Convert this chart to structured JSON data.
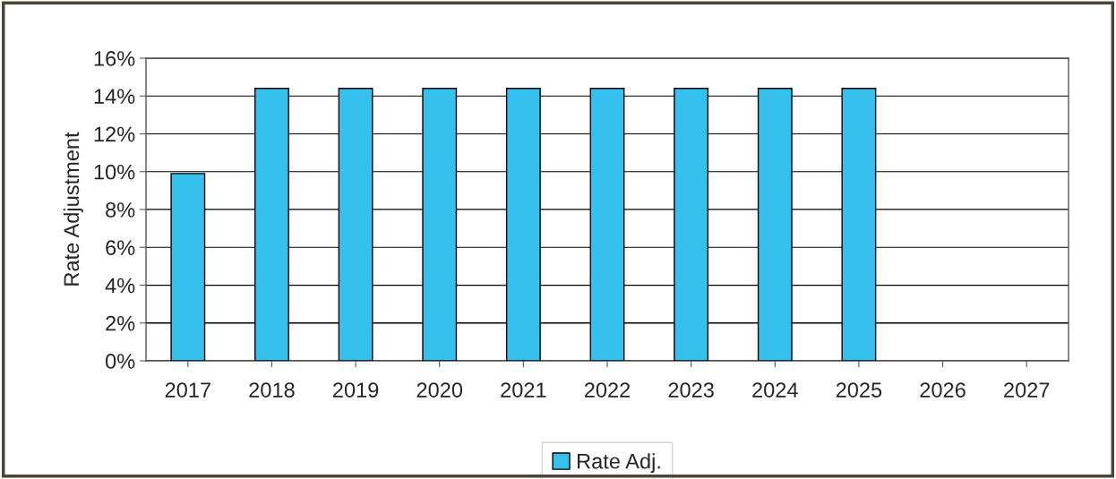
{
  "chart_data": {
    "type": "bar",
    "ylabel": "Rate Adjustment",
    "categories": [
      "2017",
      "2018",
      "2019",
      "2020",
      "2021",
      "2022",
      "2023",
      "2024",
      "2025",
      "2026",
      "2027"
    ],
    "series": [
      {
        "name": "Rate Adj.",
        "color": "#35c0ee",
        "values": [
          9.9,
          14.4,
          14.4,
          14.4,
          14.4,
          14.4,
          14.4,
          14.4,
          14.4,
          null,
          null
        ]
      }
    ],
    "ylim": [
      0,
      16
    ],
    "yticks": [
      {
        "value": 0,
        "label": "0%"
      },
      {
        "value": 2,
        "label": "2%"
      },
      {
        "value": 4,
        "label": "4%"
      },
      {
        "value": 6,
        "label": "6%"
      },
      {
        "value": 8,
        "label": "8%"
      },
      {
        "value": 10,
        "label": "10%"
      },
      {
        "value": 12,
        "label": "12%"
      },
      {
        "value": 14,
        "label": "14%"
      },
      {
        "value": 16,
        "label": "16%"
      }
    ],
    "grid": "y",
    "legend": "bottom"
  }
}
